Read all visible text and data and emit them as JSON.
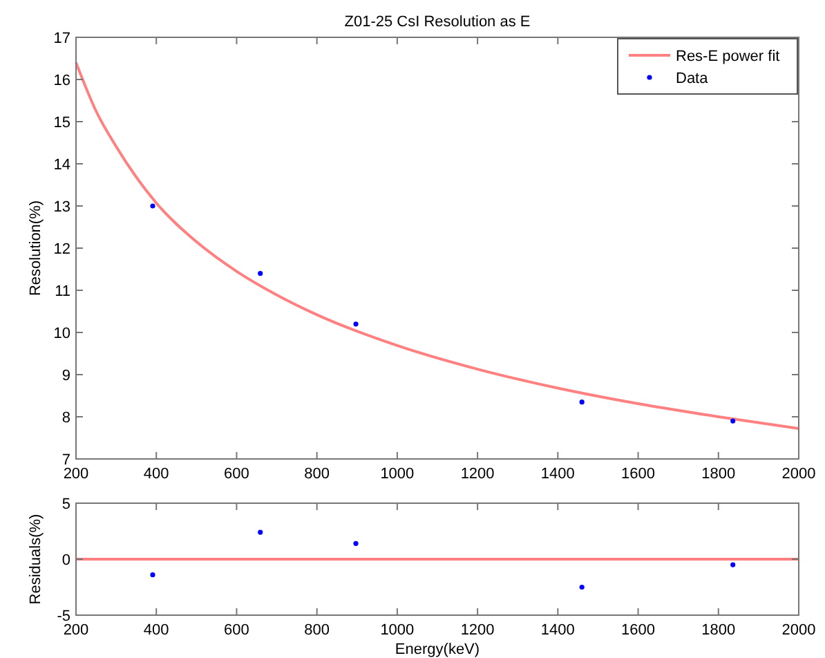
{
  "chart_data": [
    {
      "type": "line",
      "title": "Z01-25 CsI Resolution as E",
      "ylabel": "Resolution(%)",
      "xlim": [
        200,
        2000
      ],
      "xticks": [
        200,
        400,
        600,
        800,
        1000,
        1200,
        1400,
        1600,
        1800,
        2000
      ],
      "ylim": [
        7,
        17
      ],
      "yticks": [
        7,
        8,
        9,
        10,
        11,
        12,
        13,
        14,
        15,
        16,
        17
      ],
      "legend": "top right",
      "series": [
        {
          "name": "Res-E power fit",
          "color": "#ff8080",
          "x": [
            200,
            250,
            300,
            400,
            500,
            600,
            700,
            800,
            1000,
            1200,
            1400,
            1600,
            1800,
            2000
          ],
          "values": [
            16.4,
            15.25,
            14.41,
            13.07,
            12.15,
            11.45,
            10.89,
            10.42,
            9.69,
            9.13,
            8.68,
            8.31,
            8.0,
            7.72
          ]
        },
        {
          "name": "Data",
          "type": "scatter",
          "color": "#0000ff",
          "marker": "circle",
          "x": [
            391,
            659,
            897,
            1460,
            1836
          ],
          "values": [
            13.0,
            11.4,
            10.2,
            8.35,
            7.9
          ]
        }
      ]
    },
    {
      "type": "scatter",
      "xlabel": "Energy(keV)",
      "ylabel": "Residuals(%)",
      "xlim": [
        200,
        2000
      ],
      "xticks": [
        200,
        400,
        600,
        800,
        1000,
        1200,
        1400,
        1600,
        1800,
        2000
      ],
      "ylim": [
        -5,
        5
      ],
      "yticks": [
        -5,
        0,
        5
      ],
      "series": [
        {
          "type": "line",
          "color": "#ff8080",
          "x": [
            200,
            2000
          ],
          "values": [
            0,
            0
          ]
        },
        {
          "color": "#0000ff",
          "marker": "circle",
          "x": [
            391,
            659,
            897,
            1460,
            1836
          ],
          "values": [
            -1.4,
            2.4,
            1.4,
            -2.5,
            -0.5
          ]
        }
      ]
    }
  ]
}
